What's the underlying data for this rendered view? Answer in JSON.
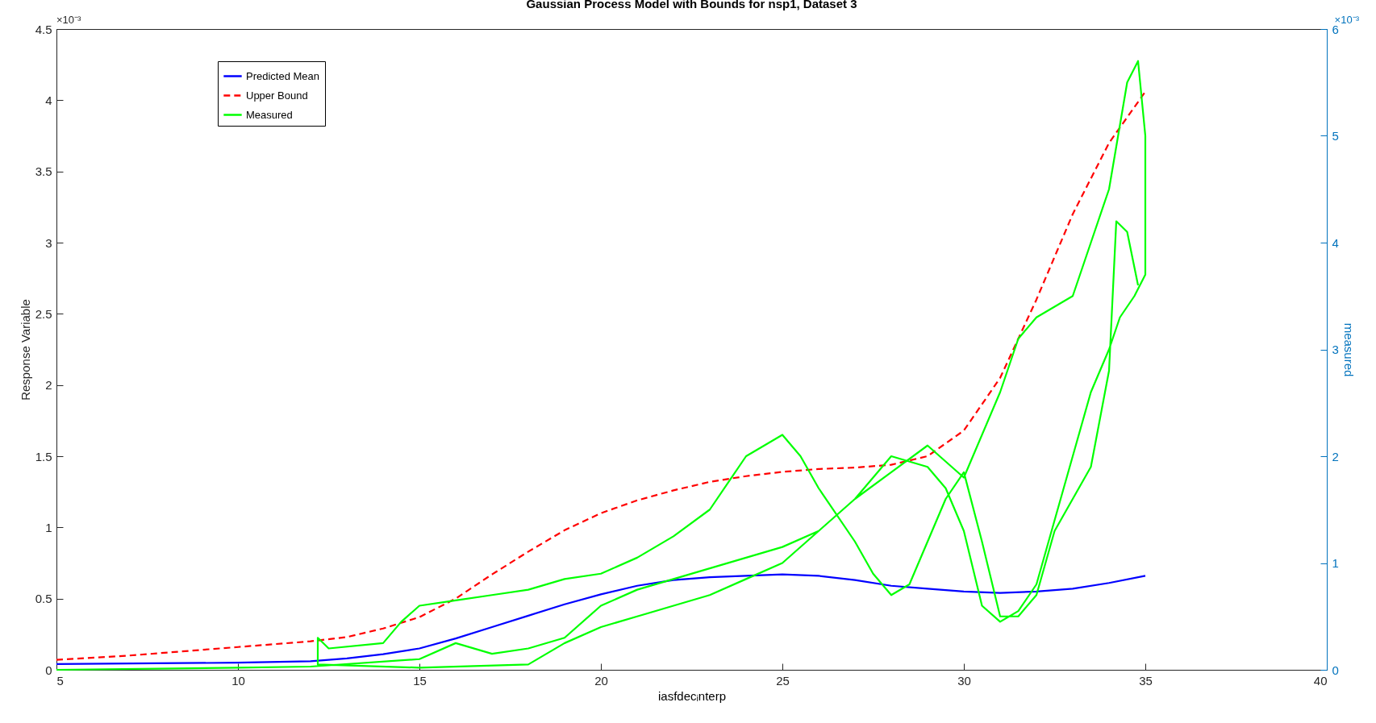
{
  "chart_data": {
    "type": "line",
    "title": "Gaussian Process Model with Bounds for nsp1, Dataset 3",
    "xlabel": "iasfdecᵢnterp",
    "ylabel": "Response Variable",
    "y2label": "measured",
    "annotations": [
      "×10⁻³",
      "×10⁻³"
    ],
    "xlim": [
      5,
      40
    ],
    "xticks": [
      5,
      10,
      15,
      20,
      25,
      30,
      35,
      40
    ],
    "ylim": [
      0,
      4.5
    ],
    "yticks": [
      0,
      0.5,
      1,
      1.5,
      2,
      2.5,
      3,
      3.5,
      4,
      4.5
    ],
    "y2lim": [
      0,
      6
    ],
    "y2ticks": [
      0,
      1,
      2,
      3,
      4,
      5,
      6
    ],
    "legend": "top left",
    "grid": false,
    "series": [
      {
        "name": "Predicted Mean",
        "color": "#0000ff",
        "line_style": "solid",
        "x": [
          5,
          10,
          12,
          13,
          14,
          15,
          16,
          17,
          18,
          19,
          20,
          21,
          22,
          23,
          24,
          25,
          26,
          27,
          28,
          29,
          30,
          31,
          32,
          33,
          34,
          35
        ],
        "values": [
          0.04,
          0.05,
          0.06,
          0.08,
          0.11,
          0.15,
          0.22,
          0.3,
          0.38,
          0.46,
          0.53,
          0.59,
          0.63,
          0.65,
          0.66,
          0.67,
          0.66,
          0.63,
          0.59,
          0.57,
          0.55,
          0.54,
          0.55,
          0.57,
          0.61,
          0.66
        ]
      },
      {
        "name": "Upper Bound",
        "color": "#ff0000",
        "line_style": "dashed",
        "x": [
          5,
          7,
          9,
          10,
          11,
          12,
          13,
          14,
          15,
          16,
          17,
          18,
          19,
          20,
          21,
          22,
          23,
          24,
          25,
          26,
          27,
          28,
          29,
          30,
          31,
          32,
          33,
          34,
          35
        ],
        "values": [
          0.07,
          0.1,
          0.14,
          0.16,
          0.18,
          0.2,
          0.23,
          0.29,
          0.37,
          0.5,
          0.67,
          0.83,
          0.98,
          1.1,
          1.19,
          1.26,
          1.32,
          1.36,
          1.39,
          1.41,
          1.42,
          1.44,
          1.5,
          1.68,
          2.05,
          2.6,
          3.2,
          3.7,
          4.06
        ]
      },
      {
        "name": "Measured",
        "color": "#00ff00",
        "line_style": "solid",
        "axis": "y2",
        "x": [
          5,
          10,
          12,
          15,
          16,
          17,
          18,
          19,
          20,
          21,
          22,
          23,
          24,
          25,
          26,
          27,
          28,
          29,
          30,
          31,
          31.5,
          32,
          33,
          33.5,
          34,
          34.5,
          34.8,
          35,
          35,
          34.7,
          34.3,
          34,
          33.5,
          33,
          32.5,
          32,
          31.5,
          31,
          30.5,
          30,
          29.5,
          29,
          28,
          27,
          26,
          25,
          24,
          23,
          22,
          21,
          20,
          19,
          18,
          15,
          12.2,
          12.2,
          12.5,
          14,
          14.5,
          15,
          16,
          17,
          18,
          19,
          20,
          21,
          22,
          23,
          23.5,
          24,
          25,
          25.5,
          26,
          27,
          27.5,
          28,
          28.5,
          29,
          29.5,
          30,
          30.5,
          31,
          31.5,
          32,
          32.5,
          33,
          33.5,
          34,
          34.2,
          34.5,
          34.8
        ],
        "values": [
          0,
          0.02,
          0.03,
          0.1,
          0.25,
          0.15,
          0.2,
          0.3,
          0.6,
          0.75,
          0.85,
          0.95,
          1.05,
          1.15,
          1.3,
          1.6,
          1.85,
          2.1,
          1.8,
          2.6,
          3.1,
          3.3,
          3.5,
          4,
          4.5,
          5.5,
          5.7,
          5,
          3.7,
          3.5,
          3.3,
          3,
          2.6,
          2,
          1.4,
          0.8,
          0.55,
          0.45,
          0.6,
          1.3,
          1.7,
          1.9,
          2,
          1.6,
          1.3,
          1,
          0.85,
          0.7,
          0.6,
          0.5,
          0.4,
          0.25,
          0.05,
          0.02,
          0.05,
          0.3,
          0.2,
          0.25,
          0.45,
          0.6,
          0.65,
          0.7,
          0.75,
          0.85,
          0.9,
          1.05,
          1.25,
          1.5,
          1.75,
          2,
          2.2,
          2,
          1.7,
          1.2,
          0.9,
          0.7,
          0.8,
          1.2,
          1.6,
          1.85,
          1.2,
          0.5,
          0.5,
          0.7,
          1.3,
          1.6,
          1.9,
          2.8,
          4.2,
          4.1,
          3.6
        ]
      }
    ]
  }
}
